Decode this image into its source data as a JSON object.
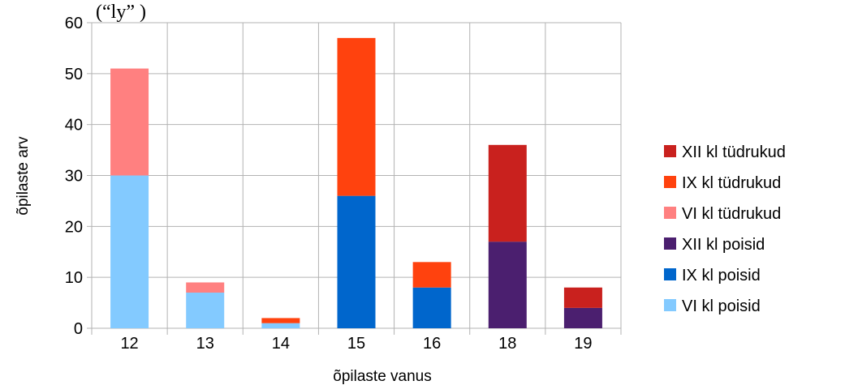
{
  "chart_data": {
    "type": "bar",
    "stacked": true,
    "title": "(“ly”        )",
    "xlabel": "õpilaste vanus",
    "ylabel": "õpilaste arv",
    "ylim": [
      0,
      60
    ],
    "yticks": [
      0,
      10,
      20,
      30,
      40,
      50,
      60
    ],
    "grid": true,
    "legend_position": "right",
    "categories": [
      "12",
      "13",
      "14",
      "15",
      "16",
      "18",
      "19"
    ],
    "series": [
      {
        "name": "VI kl poisid",
        "color": "#83caff",
        "values": [
          30,
          7,
          1,
          0,
          0,
          0,
          0
        ]
      },
      {
        "name": "IX kl poisid",
        "color": "#0066cc",
        "values": [
          0,
          0,
          0,
          26,
          8,
          0,
          0
        ]
      },
      {
        "name": "XII kl poisid",
        "color": "#4b1f6f",
        "values": [
          0,
          0,
          0,
          0,
          0,
          17,
          4
        ]
      },
      {
        "name": "VI kl tüdrukud",
        "color": "#ff8080",
        "values": [
          21,
          2,
          0,
          0,
          0,
          0,
          0
        ]
      },
      {
        "name": "IX kl tüdrukud",
        "color": "#ff420e",
        "values": [
          0,
          0,
          1,
          31,
          5,
          0,
          0
        ]
      },
      {
        "name": "XII kl tüdrukud",
        "color": "#c9211e",
        "values": [
          0,
          0,
          0,
          0,
          0,
          19,
          4
        ]
      }
    ]
  }
}
